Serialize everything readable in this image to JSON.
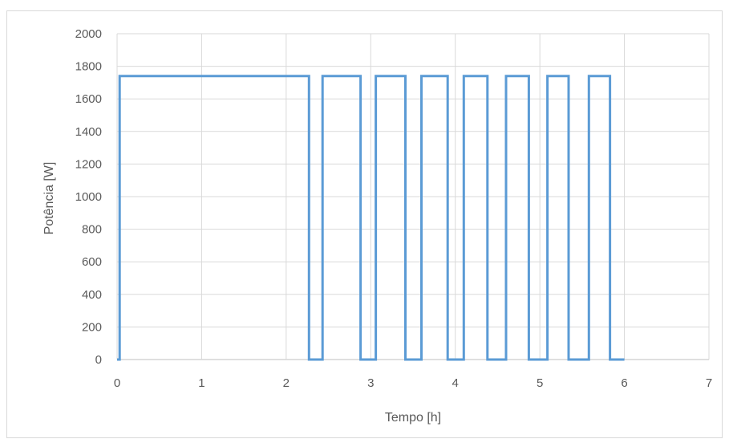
{
  "chart_data": {
    "type": "line",
    "title": "",
    "xlabel": "Tempo [h]",
    "ylabel": "Potência [W]",
    "xlim": [
      0,
      7
    ],
    "ylim": [
      0,
      2000
    ],
    "x_ticks": [
      0,
      1,
      2,
      3,
      4,
      5,
      6,
      7
    ],
    "y_ticks": [
      0,
      200,
      400,
      600,
      800,
      1000,
      1200,
      1400,
      1600,
      1800,
      2000
    ],
    "grid": true,
    "legend": "none",
    "series": [
      {
        "color": "#5b9bd5",
        "x": [
          0,
          0.03,
          0.03,
          2.27,
          2.27,
          2.43,
          2.43,
          2.88,
          2.88,
          3.06,
          3.06,
          3.41,
          3.41,
          3.6,
          3.6,
          3.91,
          3.91,
          4.1,
          4.1,
          4.38,
          4.38,
          4.6,
          4.6,
          4.87,
          4.87,
          5.09,
          5.09,
          5.34,
          5.34,
          5.58,
          5.58,
          5.83,
          5.83,
          6.0
        ],
        "y": [
          0,
          0,
          1740,
          1740,
          0,
          0,
          1740,
          1740,
          0,
          0,
          1740,
          1740,
          0,
          0,
          1740,
          1740,
          0,
          0,
          1740,
          1740,
          0,
          0,
          1740,
          1740,
          0,
          0,
          1740,
          1740,
          0,
          0,
          1740,
          1740,
          0,
          0
        ]
      }
    ]
  }
}
